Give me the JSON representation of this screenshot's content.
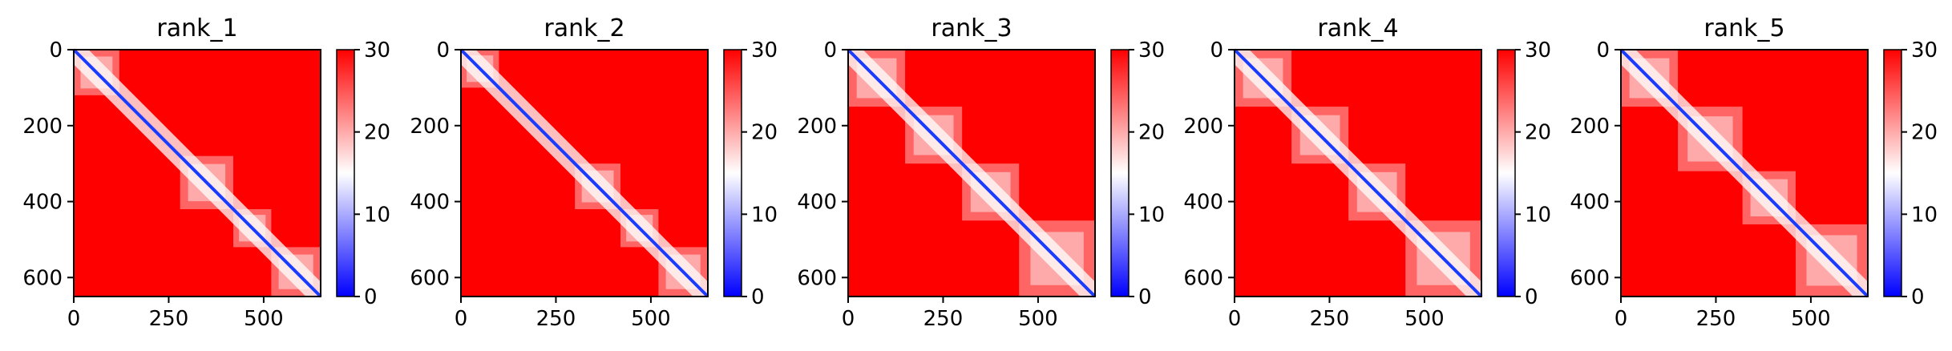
{
  "chart_data": [
    {
      "type": "heatmap",
      "title": "rank_1",
      "xlabel": "",
      "ylabel": "",
      "x_ticks": [
        "0",
        "250",
        "500"
      ],
      "y_ticks": [
        "0",
        "200",
        "400",
        "600"
      ],
      "xlim": [
        0,
        650
      ],
      "ylim": [
        650,
        0
      ],
      "colorbar": {
        "min": 0,
        "max": 30,
        "ticks": [
          "0",
          "10",
          "20",
          "30"
        ],
        "colormap": "bwr"
      },
      "diagonal_low_blocks": [
        [
          0,
          120
        ],
        [
          280,
          420
        ],
        [
          420,
          520
        ],
        [
          520,
          650
        ]
      ]
    },
    {
      "type": "heatmap",
      "title": "rank_2",
      "xlabel": "",
      "ylabel": "",
      "x_ticks": [
        "0",
        "250",
        "500"
      ],
      "y_ticks": [
        "0",
        "200",
        "400",
        "600"
      ],
      "xlim": [
        0,
        650
      ],
      "ylim": [
        650,
        0
      ],
      "colorbar": {
        "min": 0,
        "max": 30,
        "ticks": [
          "0",
          "10",
          "20",
          "30"
        ],
        "colormap": "bwr"
      },
      "diagonal_low_blocks": [
        [
          0,
          100
        ],
        [
          300,
          420
        ],
        [
          420,
          520
        ],
        [
          520,
          650
        ]
      ]
    },
    {
      "type": "heatmap",
      "title": "rank_3",
      "xlabel": "",
      "ylabel": "",
      "x_ticks": [
        "0",
        "250",
        "500"
      ],
      "y_ticks": [
        "0",
        "200",
        "400",
        "600"
      ],
      "xlim": [
        0,
        650
      ],
      "ylim": [
        650,
        0
      ],
      "colorbar": {
        "min": 0,
        "max": 30,
        "ticks": [
          "0",
          "10",
          "20",
          "30"
        ],
        "colormap": "bwr"
      },
      "diagonal_low_blocks": [
        [
          0,
          150
        ],
        [
          150,
          300
        ],
        [
          300,
          450
        ],
        [
          450,
          650
        ]
      ]
    },
    {
      "type": "heatmap",
      "title": "rank_4",
      "xlabel": "",
      "ylabel": "",
      "x_ticks": [
        "0",
        "250",
        "500"
      ],
      "y_ticks": [
        "0",
        "200",
        "400",
        "600"
      ],
      "xlim": [
        0,
        650
      ],
      "ylim": [
        650,
        0
      ],
      "colorbar": {
        "min": 0,
        "max": 30,
        "ticks": [
          "0",
          "10",
          "20",
          "30"
        ],
        "colormap": "bwr"
      },
      "diagonal_low_blocks": [
        [
          0,
          150
        ],
        [
          150,
          300
        ],
        [
          300,
          450
        ],
        [
          450,
          650
        ]
      ]
    },
    {
      "type": "heatmap",
      "title": "rank_5",
      "xlabel": "",
      "ylabel": "",
      "x_ticks": [
        "0",
        "250",
        "500"
      ],
      "y_ticks": [
        "0",
        "200",
        "400",
        "600"
      ],
      "xlim": [
        0,
        650
      ],
      "ylim": [
        650,
        0
      ],
      "colorbar": {
        "min": 0,
        "max": 30,
        "ticks": [
          "0",
          "10",
          "20",
          "30"
        ],
        "colormap": "bwr"
      },
      "diagonal_low_blocks": [
        [
          0,
          150
        ],
        [
          150,
          320
        ],
        [
          320,
          460
        ],
        [
          460,
          650
        ]
      ]
    }
  ],
  "colors": {
    "high": "#ff0000",
    "mid": "#ffffff",
    "low": "#0000ff",
    "diagonal": "#1a3cff"
  }
}
